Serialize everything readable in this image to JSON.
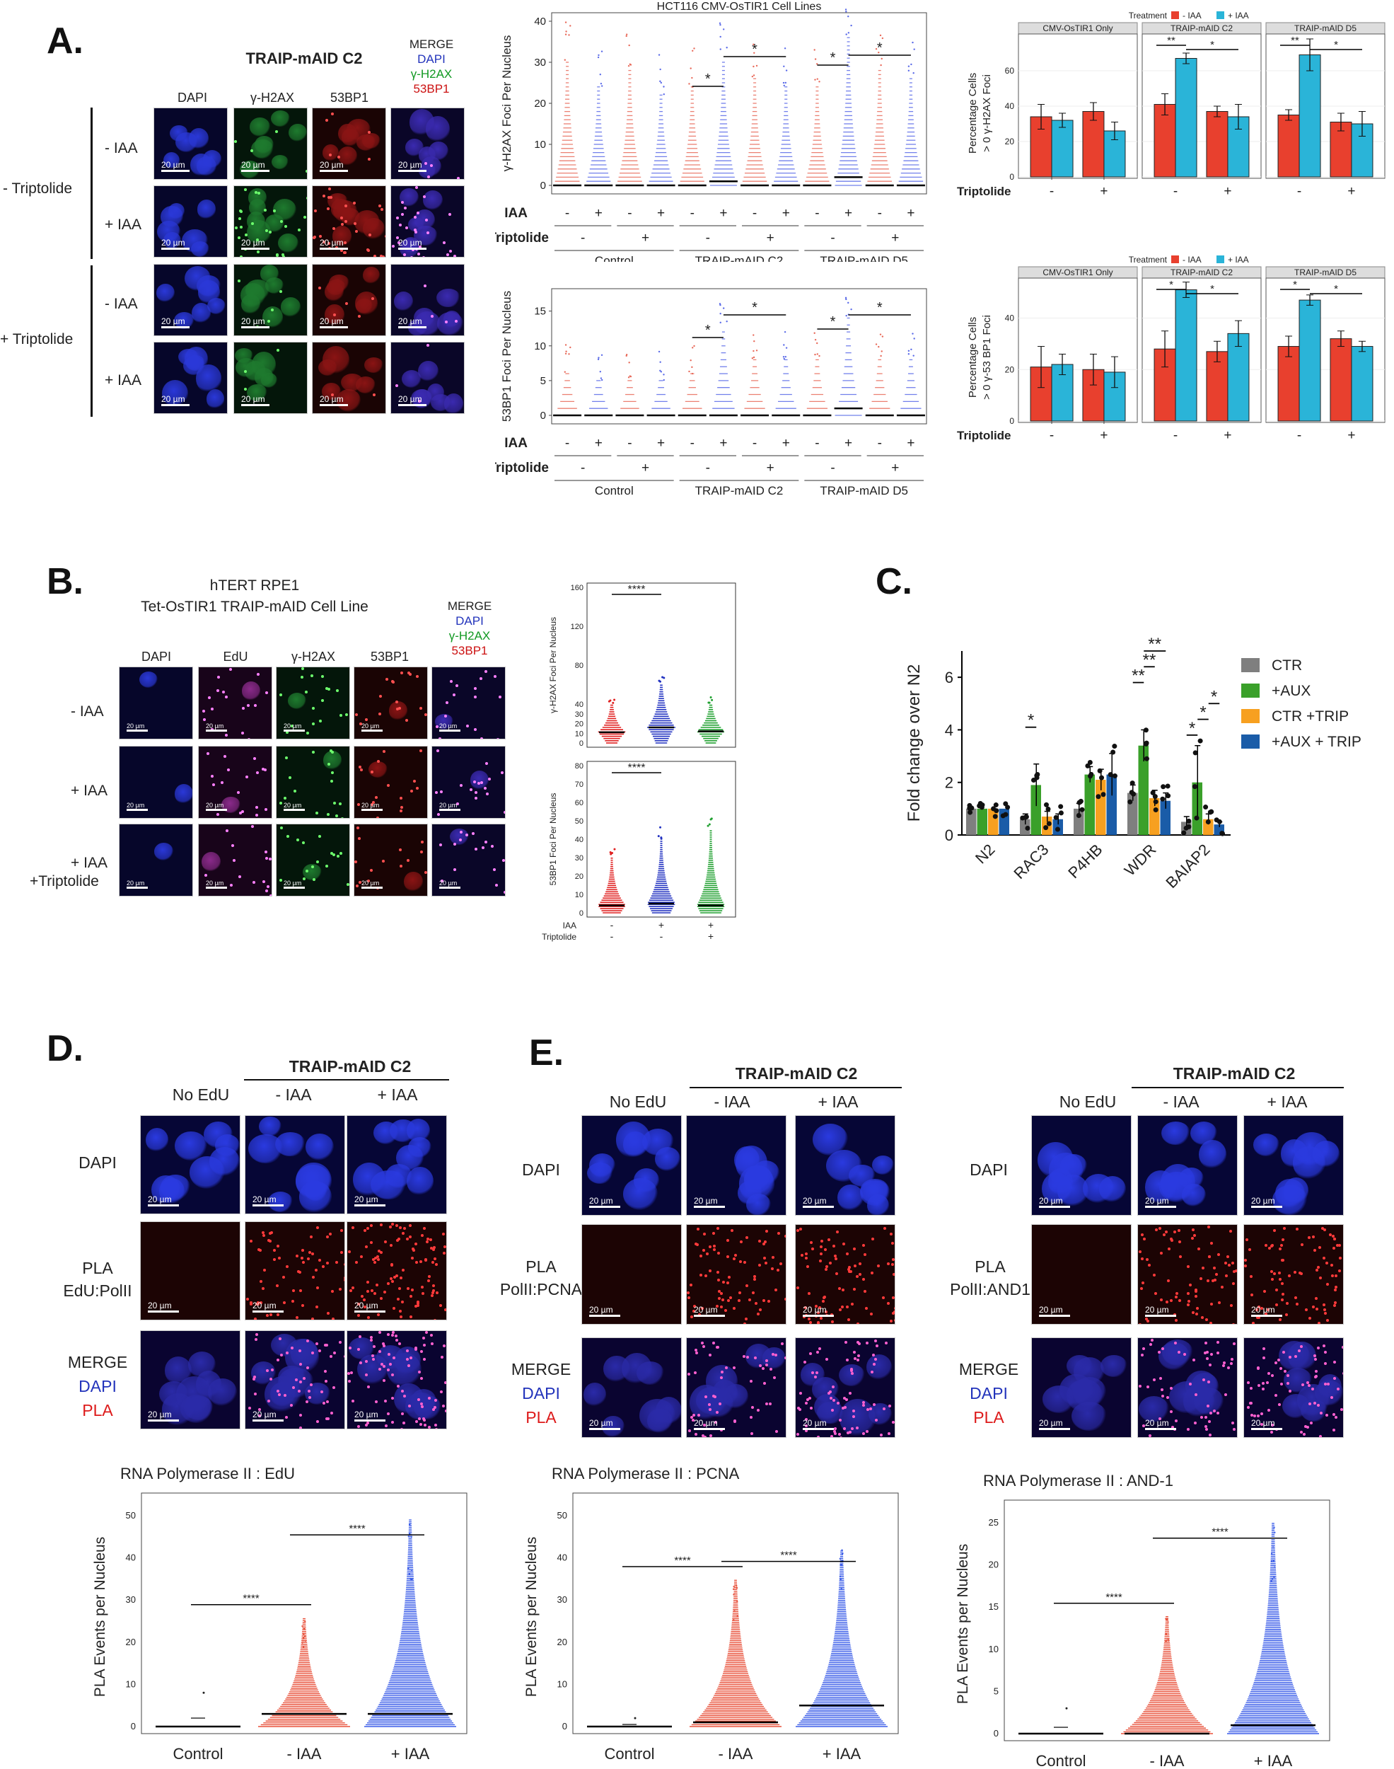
{
  "panelA": {
    "label": "A.",
    "title": "TRAIP-mAID C2",
    "columns": [
      "DAPI",
      "γ-H2AX",
      "53BP1"
    ],
    "merge": [
      "MERGE",
      "DAPI",
      "γ-H2AX",
      "53BP1"
    ],
    "groups": [
      "- Triptolide",
      "+ Triptolide"
    ],
    "rows": [
      "- IAA",
      "+ IAA",
      "- IAA",
      "+ IAA"
    ],
    "scale": "20 µm",
    "colors": {
      "dapi": "#1a2bd0",
      "h2ax": "#1a9c2a",
      "bp1": "#c01818",
      "merge": "#3a2aa8"
    }
  },
  "panelA_dot_top": {
    "title": "HCT116 CMV-OsTIR1 Cell Lines",
    "ylabel": "γ-H2AX Foci Per Nucleus",
    "row_iaa": "IAA",
    "row_trip": "Triptolide",
    "signs_iaa": [
      "-",
      "+",
      "-",
      "+",
      "-",
      "+",
      "-",
      "+",
      "-",
      "+",
      "-",
      "+"
    ],
    "signs_trip": [
      "-",
      "+",
      "-",
      "+",
      "-",
      "+"
    ],
    "groups": [
      "Control",
      "TRAIP-mAID C2",
      "TRAIP-mAID D5"
    ],
    "star": "*"
  },
  "panelA_dot_bot": {
    "ylabel": "53BP1 Foci Per Nucleus",
    "row_iaa": "IAA",
    "row_trip": "Triptolide",
    "signs_iaa": [
      "-",
      "+",
      "-",
      "+",
      "-",
      "+",
      "-",
      "+",
      "-",
      "+",
      "-",
      "+"
    ],
    "signs_trip": [
      "-",
      "+",
      "-",
      "+",
      "-",
      "+"
    ],
    "groups": [
      "Control",
      "TRAIP-mAID C2",
      "TRAIP-mAID D5"
    ],
    "star": "*"
  },
  "panelA_bar_top": {
    "legend_title": "Treatment",
    "legend": [
      "- IAA",
      "+ IAA"
    ],
    "ylabel_1": "Percentage Cells",
    "ylabel_2": "> 0 γ-H2AX Foci",
    "facets": [
      "CMV-OsTIR1 Only",
      "TRAIP-mAID C2",
      "TRAIP-mAID D5"
    ],
    "xrow": "Triptolide",
    "signs": [
      "-",
      "+"
    ],
    "stars": [
      "**",
      "*",
      "**",
      "*"
    ]
  },
  "panelA_bar_bot": {
    "legend_title": "Treatment",
    "legend": [
      "- IAA",
      "+ IAA"
    ],
    "ylabel_1": "Percentage Cells",
    "ylabel_2": "> 0 γ-53 BP1 Foci",
    "facets": [
      "CMV-OsTIR1 Only",
      "TRAIP-mAID C2",
      "TRAIP-mAID D5"
    ],
    "xrow": "Triptolide",
    "signs": [
      "-",
      "+"
    ],
    "stars": [
      "*",
      "*",
      "*",
      "*"
    ]
  },
  "panelB": {
    "label": "B.",
    "title_1": "hTERT RPE1",
    "title_2": "Tet-OsTIR1 TRAIP-mAID Cell Line",
    "columns": [
      "DAPI",
      "EdU",
      "γ-H2AX",
      "53BP1"
    ],
    "merge": [
      "MERGE",
      "DAPI",
      "γ-H2AX",
      "53BP1"
    ],
    "rows": [
      "- IAA",
      "+ IAA",
      "+ IAA",
      "+Triptolide"
    ],
    "scale": "20 µm",
    "dot_top_ylabel": "γ-H2AX Foci Per Nucleus",
    "dot_bot_ylabel": "53BP1 Foci Per Nucleus",
    "stars": "****",
    "row_iaa": "IAA",
    "row_trip": "Triptolide",
    "signs_iaa": [
      "-",
      "+",
      "+"
    ],
    "signs_trip": [
      "-",
      "-",
      "+"
    ]
  },
  "chart_data": [
    {
      "type": "bar",
      "panel": "A-top-right",
      "ylabel": "Percentage Cells > 0 γ-H2AX Foci",
      "facets": [
        "CMV-OsTIR1 Only",
        "TRAIP-mAID C2",
        "TRAIP-mAID D5"
      ],
      "categories": [
        "-",
        "+"
      ],
      "xlabel": "Triptolide",
      "ylim": [
        0,
        80
      ],
      "yticks": [
        0,
        20,
        40,
        60
      ],
      "series": [
        {
          "name": "- IAA",
          "values": [
            [
              34,
              37
            ],
            [
              41,
              37
            ],
            [
              35,
              31
            ]
          ],
          "errors": [
            [
              7,
              5
            ],
            [
              6,
              3
            ],
            [
              3,
              5
            ]
          ]
        },
        {
          "name": "+ IAA",
          "values": [
            [
              32,
              26
            ],
            [
              67,
              34
            ],
            [
              69,
              30
            ]
          ],
          "errors": [
            [
              4,
              5
            ],
            [
              3,
              7
            ],
            [
              9,
              7
            ]
          ]
        }
      ]
    },
    {
      "type": "bar",
      "panel": "A-bottom-right",
      "ylabel": "Percentage Cells > 0 γ-53 BP1 Foci",
      "facets": [
        "CMV-OsTIR1 Only",
        "TRAIP-mAID C2",
        "TRAIP-mAID D5"
      ],
      "categories": [
        "-",
        "+"
      ],
      "xlabel": "Triptolide",
      "ylim": [
        0,
        55
      ],
      "yticks": [
        0,
        20,
        40
      ],
      "series": [
        {
          "name": "- IAA",
          "values": [
            [
              21,
              20
            ],
            [
              28,
              27
            ],
            [
              29,
              32
            ]
          ],
          "errors": [
            [
              8,
              6
            ],
            [
              7,
              4
            ],
            [
              4,
              3
            ]
          ]
        },
        {
          "name": "+ IAA",
          "values": [
            [
              22,
              19
            ],
            [
              51,
              34
            ],
            [
              47,
              29
            ]
          ],
          "errors": [
            [
              4,
              6
            ],
            [
              3,
              5
            ],
            [
              2,
              2
            ]
          ]
        }
      ]
    },
    {
      "type": "bar",
      "panel": "C",
      "ylabel": "Fold change over N2",
      "categories": [
        "N2",
        "RAC3",
        "P4HB",
        "WDR",
        "BAIAP2"
      ],
      "ylim": [
        0,
        7
      ],
      "yticks": [
        0,
        2,
        4,
        6
      ],
      "series": [
        {
          "name": "CTR",
          "values": [
            1.0,
            0.6,
            1.0,
            1.6,
            0.5
          ],
          "errors": [
            0,
            0.2,
            0.2,
            0.3,
            0.2
          ]
        },
        {
          "name": "+AUX",
          "values": [
            1.0,
            1.9,
            2.3,
            3.4,
            2.0
          ],
          "errors": [
            0,
            0.8,
            0.3,
            0.6,
            1.4
          ]
        },
        {
          "name": "CTR +TRIP",
          "values": [
            1.0,
            0.7,
            2.1,
            1.4,
            0.6
          ],
          "errors": [
            0,
            0.2,
            0.4,
            0.3,
            0.2
          ]
        },
        {
          "name": "+AUX + TRIP",
          "values": [
            1.0,
            0.6,
            2.3,
            1.3,
            0.4
          ],
          "errors": [
            0,
            0.2,
            0.8,
            0.3,
            0.1
          ]
        }
      ],
      "legend_position": "right"
    },
    {
      "type": "scatter",
      "panel": "D-bottom",
      "title": "RNA Polymerase II : EdU",
      "ylabel": "PLA Events per Nucleus",
      "categories": [
        "Control",
        "- IAA",
        "+ IAA"
      ],
      "ylim": [
        0,
        52
      ],
      "yticks": [
        0,
        10,
        20,
        30,
        40,
        50
      ],
      "max": [
        8,
        26,
        49
      ],
      "median": [
        0,
        3,
        3
      ],
      "colors": [
        "#222222",
        "#e8503a",
        "#3a5ce8"
      ],
      "stars": "****"
    },
    {
      "type": "scatter",
      "panel": "E-bottom-left",
      "title": "RNA Polymerase II : PCNA",
      "ylabel": "PLA Events per Nucleus",
      "categories": [
        "Control",
        "- IAA",
        "+ IAA"
      ],
      "ylim": [
        0,
        52
      ],
      "yticks": [
        0,
        10,
        20,
        30,
        40,
        50
      ],
      "max": [
        2,
        35,
        42
      ],
      "median": [
        0,
        1,
        5
      ],
      "colors": [
        "#222222",
        "#e8503a",
        "#3a5ce8"
      ],
      "stars": "****"
    },
    {
      "type": "scatter",
      "panel": "E-bottom-right",
      "title": "RNA Polymerase II : AND-1",
      "ylabel": "PLA Events per Nucleus",
      "categories": [
        "Control",
        "- IAA",
        "+ IAA"
      ],
      "ylim": [
        0,
        26
      ],
      "yticks": [
        0,
        5,
        10,
        15,
        20,
        25
      ],
      "max": [
        3,
        14,
        25
      ],
      "median": [
        0,
        0,
        1
      ],
      "colors": [
        "#222222",
        "#e8503a",
        "#3a5ce8"
      ],
      "stars": "****"
    }
  ],
  "panelC": {
    "label": "C.",
    "star": "*",
    "star2": "**"
  },
  "panelD": {
    "label": "D.",
    "title": "TRAIP-mAID C2",
    "columns": [
      "No EdU",
      "- IAA",
      "+ IAA"
    ],
    "rows": [
      [
        "DAPI"
      ],
      [
        "PLA",
        "EdU:PolII"
      ],
      [
        "MERGE",
        "DAPI",
        "PLA"
      ]
    ],
    "scale": "20 µm"
  },
  "panelE": {
    "label": "E.",
    "title": "TRAIP-mAID C2",
    "columns": [
      "No EdU",
      "- IAA",
      "+ IAA"
    ],
    "rows_left": [
      [
        "DAPI"
      ],
      [
        "PLA",
        "PolII:PCNA"
      ],
      [
        "MERGE",
        "DAPI",
        "PLA"
      ]
    ],
    "rows_right": [
      [
        "DAPI"
      ],
      [
        "PLA",
        "PolII:AND1"
      ],
      [
        "MERGE",
        "DAPI",
        "PLA"
      ]
    ],
    "scale": "20 µm"
  }
}
